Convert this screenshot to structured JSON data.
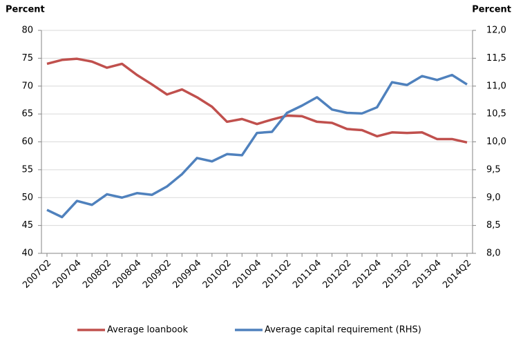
{
  "chart_data": {
    "type": "line",
    "y_label": "Percent",
    "y2_label": "Percent",
    "categories": [
      "2007Q2",
      null,
      "2007Q4",
      null,
      "2008Q2",
      null,
      "2008Q4",
      null,
      "2009Q2",
      null,
      "2009Q4",
      null,
      "2010Q2",
      null,
      "2010Q4",
      null,
      "2011Q2",
      null,
      "2011Q4",
      null,
      "2012Q2",
      null,
      "2012Q4",
      null,
      "2013Q2",
      null,
      "2013Q4",
      null,
      "2014Q2"
    ],
    "series": [
      {
        "name": "Average loanbook",
        "color": "#c0504d",
        "axis": "y",
        "values": [
          74,
          74.7,
          74.9,
          74.4,
          73.3,
          74,
          72,
          70.3,
          68.5,
          69.4,
          68,
          66.3,
          63.6,
          64.1,
          63.2,
          64,
          64.7,
          64.6,
          63.6,
          63.4,
          62.3,
          62.1,
          61,
          61.7,
          61.6,
          61.7,
          60.5,
          60.5,
          59.9
        ]
      },
      {
        "name": "Average capital requirement (RHS)",
        "color": "#4f81bd",
        "axis": "y2",
        "values": [
          8.78,
          8.65,
          8.94,
          8.87,
          9.06,
          9.0,
          9.08,
          9.05,
          9.2,
          9.42,
          9.71,
          9.65,
          9.78,
          9.76,
          10.16,
          10.18,
          10.52,
          10.65,
          10.8,
          10.58,
          10.52,
          10.51,
          10.62,
          11.07,
          11.02,
          11.18,
          11.11,
          11.2,
          11.03
        ]
      }
    ],
    "ylim": [
      40,
      80
    ],
    "yticks": [
      40,
      45,
      50,
      55,
      60,
      65,
      70,
      75,
      80
    ],
    "y2lim": [
      8,
      12
    ],
    "y2ticks": [
      {
        "value": 8,
        "label": "8,0"
      },
      {
        "value": 8.5,
        "label": "8,5"
      },
      {
        "value": 9,
        "label": "9,0"
      },
      {
        "value": 9.5,
        "label": "9,5"
      },
      {
        "value": 10,
        "label": "10,0"
      },
      {
        "value": 10.5,
        "label": "10,5"
      },
      {
        "value": 11,
        "label": "11,0"
      },
      {
        "value": 11.5,
        "label": "11,5"
      },
      {
        "value": 12,
        "label": "12,0"
      }
    ],
    "grid": true,
    "legend": "bottom"
  }
}
